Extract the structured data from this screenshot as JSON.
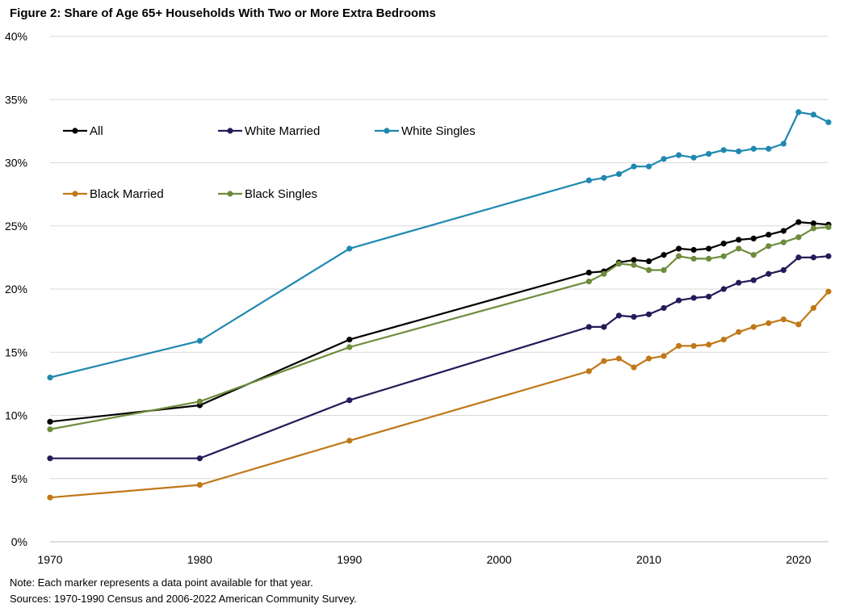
{
  "chart_data": {
    "type": "line",
    "title": "Figure 2: Share of Age 65+ Households With Two or More Extra Bedrooms",
    "xlabel": "",
    "ylabel": "",
    "xlim": [
      1970,
      2022
    ],
    "ylim": [
      0,
      40
    ],
    "x_ticks": [
      1970,
      1980,
      1990,
      2000,
      2010,
      2020
    ],
    "y_ticks": [
      0,
      5,
      10,
      15,
      20,
      25,
      30,
      35,
      40
    ],
    "y_tick_format": "%",
    "grid": "horizontal",
    "legend_position": "top-left, inside plot, two rows",
    "series": [
      {
        "name": "All",
        "color": "#000000",
        "x": [
          1970,
          1980,
          1990,
          2006,
          2007,
          2008,
          2009,
          2010,
          2011,
          2012,
          2013,
          2014,
          2015,
          2016,
          2017,
          2018,
          2019,
          2020,
          2021,
          2022
        ],
        "values": [
          9.5,
          10.8,
          16.0,
          21.3,
          21.4,
          22.1,
          22.3,
          22.2,
          22.7,
          23.2,
          23.1,
          23.2,
          23.6,
          23.9,
          24.0,
          24.3,
          24.6,
          25.3,
          25.2,
          25.1
        ]
      },
      {
        "name": "White Married",
        "color": "#241b59",
        "x": [
          1970,
          1980,
          1990,
          2006,
          2007,
          2008,
          2009,
          2010,
          2011,
          2012,
          2013,
          2014,
          2015,
          2016,
          2017,
          2018,
          2019,
          2020,
          2021,
          2022
        ],
        "values": [
          6.6,
          6.6,
          11.2,
          17.0,
          17.0,
          17.9,
          17.8,
          18.0,
          18.5,
          19.1,
          19.3,
          19.4,
          20.0,
          20.5,
          20.7,
          21.2,
          21.5,
          22.5,
          22.5,
          22.6
        ]
      },
      {
        "name": "White Singles",
        "color": "#1f88b0",
        "x": [
          1970,
          1980,
          1990,
          2006,
          2007,
          2008,
          2009,
          2010,
          2011,
          2012,
          2013,
          2014,
          2015,
          2016,
          2017,
          2018,
          2019,
          2020,
          2021,
          2022
        ],
        "values": [
          13.0,
          15.9,
          23.2,
          28.6,
          28.8,
          29.1,
          29.7,
          29.7,
          30.3,
          30.6,
          30.4,
          30.7,
          31.0,
          30.9,
          31.1,
          31.1,
          31.5,
          34.0,
          33.8,
          33.2
        ]
      },
      {
        "name": "Black Married",
        "color": "#c07818",
        "x": [
          1970,
          1980,
          1990,
          2006,
          2007,
          2008,
          2009,
          2010,
          2011,
          2012,
          2013,
          2014,
          2015,
          2016,
          2017,
          2018,
          2019,
          2020,
          2021,
          2022
        ],
        "values": [
          3.5,
          4.5,
          8.0,
          13.5,
          14.3,
          14.5,
          13.8,
          14.5,
          14.7,
          15.5,
          15.5,
          15.6,
          16.0,
          16.6,
          17.0,
          17.3,
          17.6,
          17.2,
          18.5,
          19.8
        ]
      },
      {
        "name": "Black Singles",
        "color": "#6e8c3c",
        "x": [
          1970,
          1980,
          1990,
          2006,
          2007,
          2008,
          2009,
          2010,
          2011,
          2012,
          2013,
          2014,
          2015,
          2016,
          2017,
          2018,
          2019,
          2020,
          2021,
          2022
        ],
        "values": [
          8.9,
          11.1,
          15.4,
          20.6,
          21.2,
          22.0,
          21.9,
          21.5,
          21.5,
          22.6,
          22.4,
          22.4,
          22.6,
          23.2,
          22.7,
          23.4,
          23.7,
          24.1,
          24.8,
          24.9
        ]
      }
    ]
  },
  "notes": {
    "note": "Note: Each marker represents a data point available for that year.",
    "sources": "Sources: 1970-1990  Census and 2006-2022  American Community Survey."
  }
}
